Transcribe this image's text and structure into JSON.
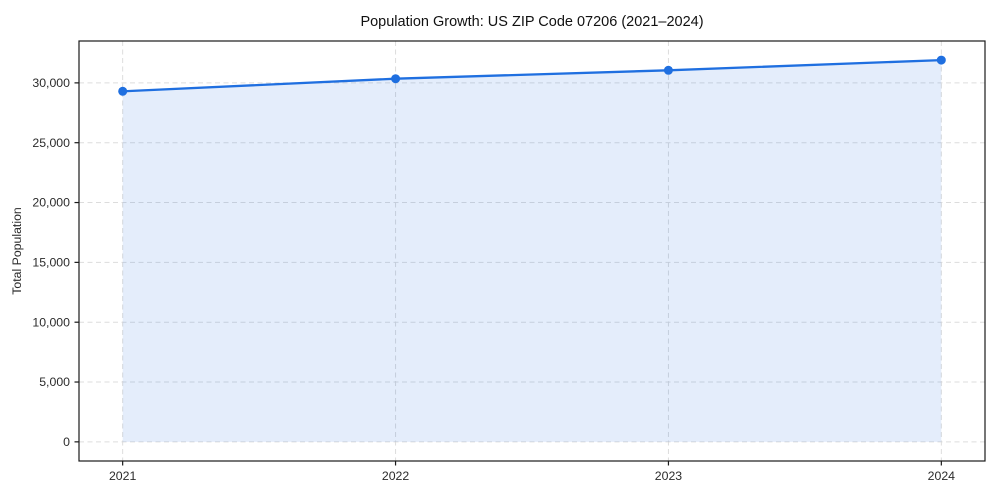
{
  "title": "Population Growth: US ZIP Code 07206 (2021–2024)",
  "chart_data": {
    "type": "line",
    "title": "Population Growth: US ZIP Code 07206 (2021–2024)",
    "xlabel": "",
    "ylabel": "Total Population",
    "x": [
      2021,
      2022,
      2023,
      2024
    ],
    "series": [
      {
        "name": "Total Population",
        "values": [
          29300,
          30350,
          31050,
          31900
        ]
      }
    ],
    "xticks": [
      2021,
      2022,
      2023,
      2024
    ],
    "xtick_labels": [
      "2021",
      "2022",
      "2023",
      "2024"
    ],
    "yticks": [
      0,
      5000,
      10000,
      15000,
      20000,
      25000,
      30000
    ],
    "ytick_labels": [
      "0",
      "5,000",
      "10,000",
      "15,000",
      "20,000",
      "25,000",
      "30,000"
    ],
    "xlim": [
      2020.84,
      2024.16
    ],
    "ylim": [
      -1600,
      33500
    ],
    "grid": true,
    "grid_style": "dashed",
    "legend": false,
    "area_fill": true,
    "colors": {
      "line": "#1f6fe0",
      "marker": "#1f6fe0",
      "fill": "rgba(31,111,224,0.12)",
      "grid": "#d9d9d9",
      "spine": "#1a1a1a",
      "title_text": "#111111",
      "tick_text": "#2b2b2b"
    }
  }
}
